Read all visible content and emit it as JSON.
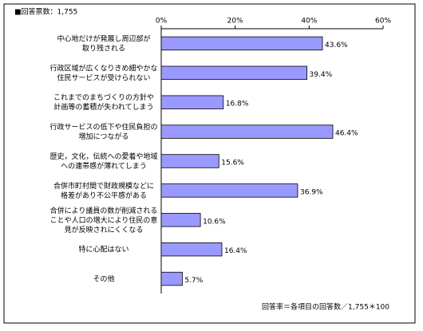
{
  "chart_data": {
    "type": "bar",
    "orientation": "horizontal",
    "title": "■回答票数：1,755",
    "note": "回答率＝各項目の回答数／1,755＊100",
    "categories": [
      "中心地だけが発展し周辺部が\n取り残される",
      "行政区域が広くなりきめ細やかな\n住民サービスが受けられない",
      "これまでのまちづくりの方針や\n計画等の蓄積が失われてしまう",
      "行政サービスの低下や住民負担の\n増加につながる",
      "歴史，文化，伝統への愛着や地域\nへの連帯感が薄れてしまう",
      "合併市町村間で財政規模などに\n格差があり不公平感がある",
      "合併により議員の数が削減される\nことや人口の増大により住民の意\n見が反映されにくくなる",
      "特に心配はない",
      "その他"
    ],
    "values": [
      43.6,
      39.4,
      16.8,
      46.4,
      15.6,
      36.9,
      10.6,
      16.4,
      5.7
    ],
    "value_labels": [
      "43.6%",
      "39.4%",
      "16.8%",
      "46.4%",
      "15.6%",
      "36.9%",
      "10.6%",
      "16.4%",
      "5.7%"
    ],
    "color": "#9999ff",
    "xlim": [
      0,
      60
    ],
    "xticks": [
      {
        "value": 0,
        "label": "0%"
      },
      {
        "value": 20,
        "label": "20%"
      },
      {
        "value": 40,
        "label": "40%"
      },
      {
        "value": 60,
        "label": "60%"
      }
    ],
    "grid": false
  }
}
